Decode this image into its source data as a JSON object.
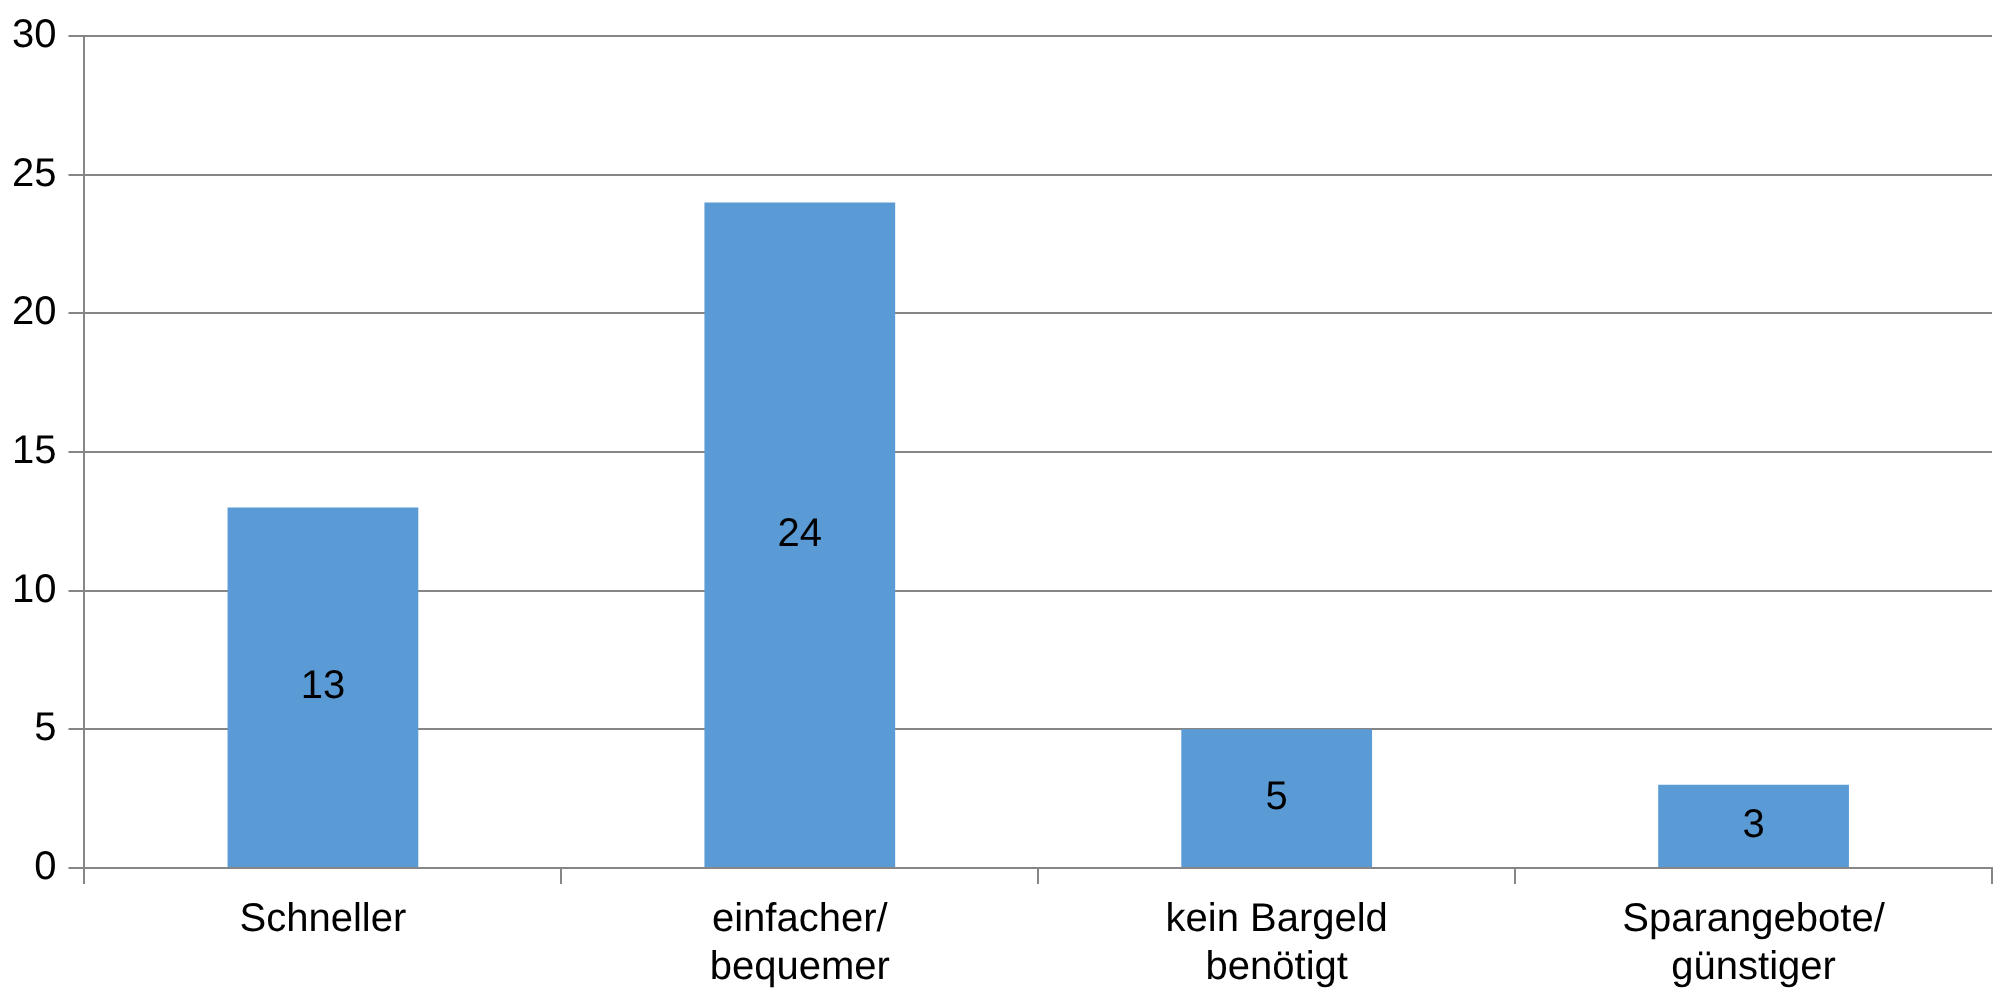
{
  "chart_data": {
    "type": "bar",
    "categories": [
      "Schneller",
      "einfacher/\nbequemer",
      "kein Bargeld\nbenötigt",
      "Sparangebote/\ngünstiger"
    ],
    "values": [
      13,
      24,
      5,
      3
    ],
    "color": "#5b9bd5",
    "ylim": [
      0,
      30
    ],
    "yticks": [
      0,
      5,
      10,
      15,
      20,
      25,
      30
    ],
    "grid": "y",
    "data_labels": true,
    "legend": false
  }
}
